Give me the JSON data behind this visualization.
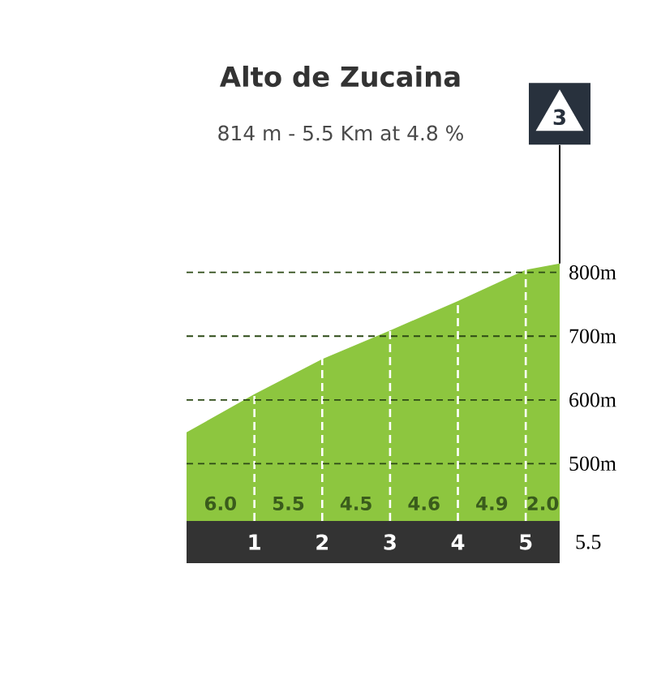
{
  "chart_data": {
    "type": "area",
    "title": "Alto de Zucaina",
    "subtitle": "814 m - 5.5 Km at 4.8 %",
    "x": [
      0,
      1,
      2,
      3,
      4,
      5,
      5.5
    ],
    "values": [
      549,
      609,
      664,
      709,
      755,
      804,
      814
    ],
    "color": "#8dc63f",
    "xlim": [
      0,
      5.5
    ],
    "ylim": [
      410,
      820
    ],
    "xticks": [
      1,
      2,
      3,
      4,
      5
    ],
    "yticks": [
      {
        "value": 500,
        "label": "500m"
      },
      {
        "value": 600,
        "label": "600m"
      },
      {
        "value": 700,
        "label": "700m"
      },
      {
        "value": 800,
        "label": "800m"
      }
    ],
    "grid": true,
    "annotations": [
      "6.0",
      "5.5",
      "4.5",
      "4.6",
      "4.9",
      "2.0",
      "5.5",
      {
        "text": "3",
        "x": 5.5,
        "y": 814
      }
    ]
  }
}
